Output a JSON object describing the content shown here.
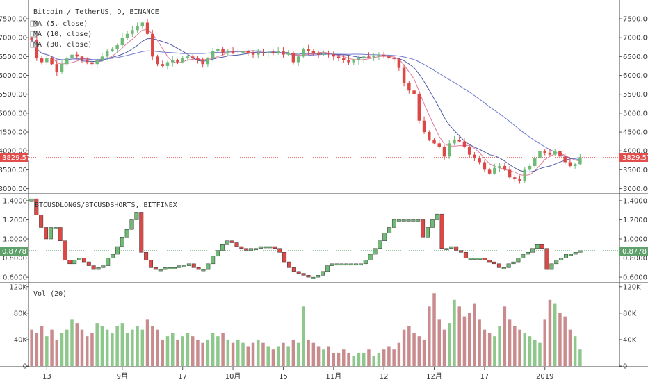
{
  "colors": {
    "up": "#6fba77",
    "down": "#dc4845",
    "vol_up": "#8ec78c",
    "vol_down": "#c98c8e",
    "ma5": "#e07a9a",
    "ma10": "#4f5aa8",
    "ma30": "#6f7bd0",
    "ratio_badge": "#5fa16a",
    "price_badge": "#e24c4a",
    "axis": "#555555"
  },
  "icons": {
    "legend_marker": "square-checkbox-icon"
  },
  "price_panel": {
    "title": "Bitcoin / TetherUS, D, BINANCE",
    "legend": [
      "MA (5, close)",
      "MA (10, close)",
      "MA (30, close)"
    ],
    "ticks": [
      "7500.00",
      "7000.00",
      "6500.00",
      "6000.00",
      "5500.00",
      "5000.00",
      "4500.00",
      "4000.00",
      "3500.00",
      "3000.00"
    ],
    "current_label": "3829.57"
  },
  "ratio_panel": {
    "title": "BTCUSDLONGS/BTCUSDSHORTS, BITFINEX",
    "ticks": [
      "1.4000",
      "1.2000",
      "1.0000",
      "0.8000",
      "0.6000"
    ],
    "current_label": "0.8778"
  },
  "volume_panel": {
    "title": "Vol (20)",
    "ticks": [
      "120K",
      "80K",
      "40K",
      "0"
    ]
  },
  "x_axis": {
    "labels": [
      "13",
      "9月",
      "17",
      "10月",
      "15",
      "11月",
      "12",
      "12月",
      "17",
      "2019"
    ]
  },
  "chart_data": [
    {
      "type": "candlestick",
      "title": "Bitcoin / TetherUS, D, BINANCE",
      "series_names": [
        "MA (5, close)",
        "MA (10, close)",
        "MA (30, close)"
      ],
      "y_ticks": [
        3000,
        3500,
        4000,
        4500,
        5000,
        5500,
        6000,
        6500,
        7000,
        7500
      ],
      "ylim": [
        2900,
        7850
      ],
      "last": 3829.57,
      "closes": [
        6950,
        6450,
        6350,
        6450,
        6300,
        6100,
        6300,
        6450,
        6550,
        6500,
        6400,
        6350,
        6300,
        6400,
        6500,
        6650,
        6700,
        6800,
        7000,
        7100,
        7200,
        7300,
        7400,
        7100,
        6500,
        6300,
        6250,
        6350,
        6400,
        6350,
        6450,
        6500,
        6450,
        6400,
        6300,
        6450,
        6650,
        6700,
        6600,
        6650,
        6600,
        6600,
        6650,
        6600,
        6550,
        6600,
        6580,
        6620,
        6600,
        6650,
        6550,
        6600,
        6350,
        6500,
        6700,
        6650,
        6600,
        6550,
        6580,
        6560,
        6500,
        6450,
        6400,
        6350,
        6400,
        6450,
        6500,
        6480,
        6520,
        6550,
        6500,
        6450,
        6430,
        6200,
        5800,
        5600,
        5500,
        4800,
        4500,
        4300,
        4200,
        4100,
        3850,
        4200,
        4300,
        4250,
        4100,
        3900,
        3800,
        3700,
        3500,
        3400,
        3550,
        3600,
        3500,
        3300,
        3250,
        3200,
        3500,
        3600,
        3800,
        4000,
        3950,
        3900,
        4000,
        3850,
        3700,
        3600,
        3650,
        3829.57
      ],
      "volume": {
        "y_ticks": [
          0,
          40000,
          80000,
          120000
        ],
        "ylim": [
          0,
          125000
        ],
        "values": [
          55,
          50,
          60,
          45,
          55,
          40,
          50,
          55,
          70,
          65,
          55,
          45,
          50,
          65,
          60,
          55,
          50,
          60,
          65,
          50,
          55,
          60,
          55,
          70,
          60,
          55,
          40,
          45,
          50,
          40,
          45,
          50,
          45,
          40,
          35,
          40,
          50,
          45,
          50,
          40,
          35,
          40,
          35,
          30,
          35,
          40,
          35,
          30,
          25,
          30,
          35,
          30,
          40,
          35,
          90,
          40,
          35,
          30,
          25,
          30,
          20,
          20,
          25,
          20,
          15,
          20,
          20,
          25,
          15,
          20,
          25,
          30,
          25,
          35,
          55,
          60,
          50,
          45,
          40,
          90,
          110,
          70,
          55,
          65,
          100,
          90,
          75,
          80,
          95,
          70,
          55,
          50,
          45,
          60,
          90,
          70,
          60,
          55,
          50,
          45,
          40,
          35,
          70,
          100,
          95,
          80,
          75,
          55,
          45,
          25
        ],
        "color_by": "candle_direction"
      }
    },
    {
      "type": "line_break",
      "title": "BTCUSDLONGS/BTCUSDSHORTS, BITFINEX",
      "y_ticks": [
        0.6,
        0.8,
        1.0,
        1.2,
        1.4
      ],
      "ylim": [
        0.55,
        1.45
      ],
      "last": 0.8778,
      "closes": [
        1.42,
        1.25,
        1.12,
        1.0,
        1.12,
        1.12,
        0.98,
        0.78,
        0.74,
        0.78,
        0.8,
        0.76,
        0.72,
        0.68,
        0.7,
        0.72,
        0.8,
        0.84,
        0.92,
        1.02,
        1.1,
        1.2,
        1.28,
        0.86,
        0.78,
        0.7,
        0.68,
        0.68,
        0.7,
        0.7,
        0.7,
        0.72,
        0.72,
        0.74,
        0.7,
        0.68,
        0.68,
        0.74,
        0.82,
        0.88,
        0.94,
        0.98,
        0.96,
        0.92,
        0.9,
        0.88,
        0.9,
        0.9,
        0.92,
        0.92,
        0.92,
        0.9,
        0.86,
        0.76,
        0.7,
        0.66,
        0.64,
        0.62,
        0.6,
        0.6,
        0.62,
        0.66,
        0.72,
        0.74,
        0.74,
        0.74,
        0.74,
        0.74,
        0.74,
        0.74,
        0.78,
        0.84,
        0.9,
        0.98,
        1.06,
        1.12,
        1.2,
        1.2,
        1.2,
        1.2,
        1.2,
        1.2,
        1.02,
        1.12,
        1.2,
        1.26,
        0.9,
        0.9,
        0.92,
        0.88,
        0.86,
        0.8,
        0.8,
        0.8,
        0.8,
        0.78,
        0.76,
        0.74,
        0.7,
        0.7,
        0.74,
        0.76,
        0.8,
        0.84,
        0.86,
        0.9,
        0.94,
        0.9,
        0.68,
        0.74,
        0.78,
        0.8,
        0.84,
        0.84,
        0.86,
        0.8778
      ]
    }
  ]
}
